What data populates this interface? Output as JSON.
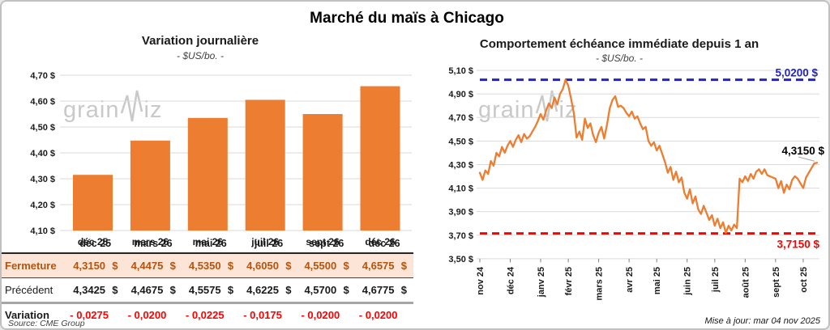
{
  "page": {
    "title": "Marché du maïs à Chicago",
    "source": "Source: CME Group",
    "updated": "Mise à jour: mar 04 nov 2025",
    "watermark_pre": "grain",
    "watermark_post": "iz"
  },
  "colors": {
    "orange": "#ED7D31",
    "blue": "#2323CB",
    "red": "#FF0000",
    "grid": "#DADADA",
    "peach": "#FCE4D6",
    "brown": "#B4540E",
    "tick": "#7F7F7F",
    "leader": "#A6A6A6"
  },
  "chart_data": [
    {
      "type": "bar",
      "title": "Variation journalière",
      "subtitle": "- $US/bo. -",
      "categories": [
        "déc 25",
        "mars 26",
        "mai 26",
        "juil 26",
        "sept 26",
        "déc 26"
      ],
      "values": [
        4.315,
        4.4475,
        4.535,
        4.605,
        4.55,
        4.6575
      ],
      "ylim": [
        4.1,
        4.7
      ],
      "ytick_labels": [
        "4,70 $",
        "4,60 $",
        "4,50 $",
        "4,40 $",
        "4,30 $",
        "4,20 $",
        "4,10 $"
      ],
      "ytick_values": [
        4.7,
        4.6,
        4.5,
        4.4,
        4.3,
        4.2,
        4.1
      ],
      "bar_color": "#ED7D31",
      "grid": true
    },
    {
      "type": "line",
      "title": "Comportement échéance immédiate depuis 1 an",
      "subtitle": "- $US/bo. -",
      "x_tick_labels": [
        "nov 24",
        "déc 24",
        "janv 25",
        "févr 25",
        "mars 25",
        "avr 25",
        "mai 25",
        "juin 25",
        "juil 25",
        "août 25",
        "sept 25",
        "oct 25"
      ],
      "x_tick_indices": [
        0,
        11,
        22,
        32,
        43,
        54,
        64,
        75,
        85,
        96,
        107,
        117
      ],
      "values": [
        4.23,
        4.17,
        4.25,
        4.22,
        4.33,
        4.29,
        4.4,
        4.37,
        4.45,
        4.4,
        4.46,
        4.5,
        4.45,
        4.51,
        4.55,
        4.49,
        4.56,
        4.52,
        4.54,
        4.58,
        4.62,
        4.67,
        4.73,
        4.68,
        4.76,
        4.82,
        4.78,
        4.87,
        4.81,
        4.9,
        4.94,
        5.02,
        4.97,
        4.86,
        4.74,
        4.53,
        4.58,
        4.51,
        4.69,
        4.61,
        4.65,
        4.55,
        4.49,
        4.57,
        4.62,
        4.52,
        4.64,
        4.78,
        4.85,
        4.88,
        4.79,
        4.8,
        4.78,
        4.74,
        4.71,
        4.75,
        4.69,
        4.71,
        4.65,
        4.6,
        4.62,
        4.5,
        4.46,
        4.49,
        4.42,
        4.46,
        4.39,
        4.32,
        4.23,
        4.28,
        4.17,
        4.24,
        4.15,
        4.19,
        4.06,
        4.01,
        4.09,
        3.97,
        4.03,
        3.92,
        3.88,
        3.95,
        3.89,
        3.83,
        3.87,
        3.78,
        3.84,
        3.76,
        3.81,
        3.72,
        3.78,
        3.74,
        3.79,
        3.76,
        4.18,
        4.15,
        4.2,
        4.16,
        4.22,
        4.18,
        4.24,
        4.26,
        4.22,
        4.26,
        4.21,
        4.2,
        4.19,
        4.18,
        4.1,
        4.16,
        4.06,
        4.13,
        4.09,
        4.17,
        4.2,
        4.18,
        4.14,
        4.1,
        4.19,
        4.23,
        4.27,
        4.31,
        4.315
      ],
      "ylim": [
        3.5,
        5.1
      ],
      "ytick_labels": [
        "5,10 $",
        "4,90 $",
        "4,70 $",
        "4,50 $",
        "4,30 $",
        "4,10 $",
        "3,90 $",
        "3,70 $",
        "3,50 $"
      ],
      "ytick_values": [
        5.1,
        4.9,
        4.7,
        4.5,
        4.3,
        4.1,
        3.9,
        3.7,
        3.5
      ],
      "hline_max": {
        "value": 5.02,
        "label": "5,0200 $",
        "color": "#2323CB"
      },
      "hline_min": {
        "value": 3.715,
        "label": "3,7150 $",
        "color": "#FF0000"
      },
      "last_label": "4,3150 $",
      "line_color": "#ED7D31",
      "grid": true,
      "legend": "none"
    }
  ],
  "table": {
    "headers": [
      "déc 25",
      "mars 26",
      "mai 26",
      "juil 26",
      "sept 26",
      "déc 26"
    ],
    "rows": [
      {
        "label": "Fermeture",
        "style": "fermeture",
        "suffix": "$",
        "values": [
          "4,3150",
          "4,4475",
          "4,5350",
          "4,6050",
          "4,5500",
          "4,6575"
        ]
      },
      {
        "label": "Précédent",
        "style": "precedent",
        "suffix": "$",
        "values": [
          "4,3425",
          "4,4675",
          "4,5575",
          "4,6225",
          "4,5700",
          "4,6775"
        ]
      },
      {
        "label": "Variation",
        "style": "variation",
        "suffix": "",
        "values": [
          "- 0,0275",
          "- 0,0200",
          "- 0,0225",
          "- 0,0175",
          "- 0,0200",
          "- 0,0200"
        ]
      }
    ]
  }
}
